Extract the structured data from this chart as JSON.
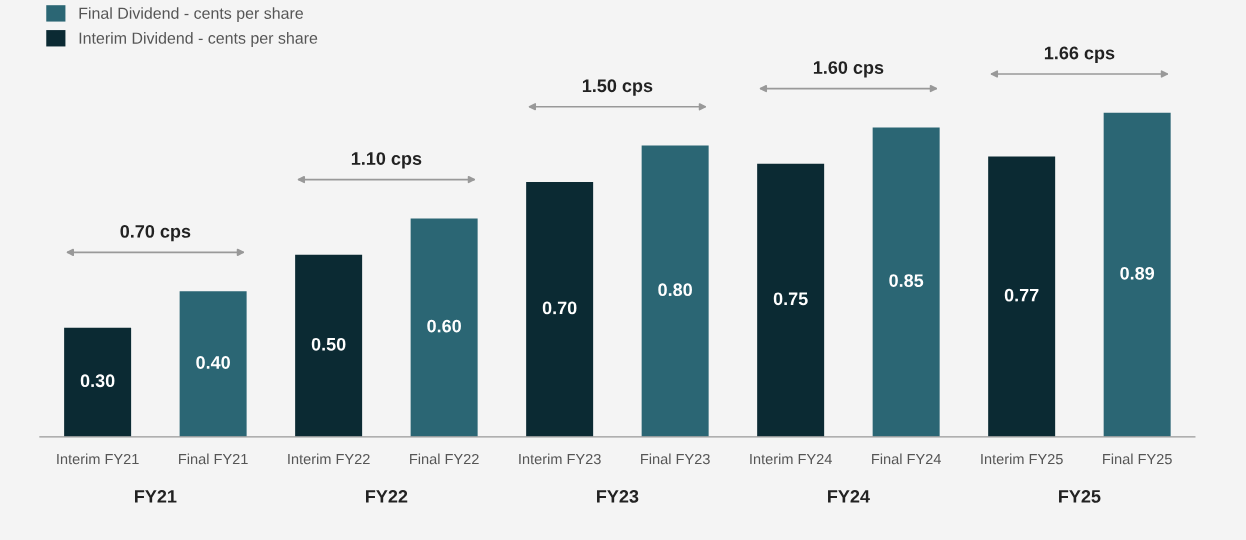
{
  "chart_data": {
    "type": "bar",
    "categories": [
      "Interim FY21",
      "Final FY21",
      "Interim FY22",
      "Final FY22",
      "Interim FY23",
      "Final FY23",
      "Interim FY24",
      "Final FY24",
      "Interim FY25",
      "Final FY25"
    ],
    "series": [
      {
        "name": "Final Dividend - cents per share",
        "color": "#2b6674",
        "values": [
          null,
          0.4,
          null,
          0.6,
          null,
          0.8,
          null,
          0.85,
          null,
          0.89
        ],
        "value_labels": [
          null,
          "0.40",
          null,
          "0.60",
          null,
          "0.80",
          null,
          "0.85",
          null,
          "0.89"
        ]
      },
      {
        "name": "Interim Dividend - cents per share",
        "color": "#0b2a33",
        "values": [
          0.3,
          null,
          0.5,
          null,
          0.7,
          null,
          0.75,
          null,
          0.77,
          null
        ],
        "value_labels": [
          "0.30",
          null,
          "0.50",
          null,
          "0.70",
          null,
          "0.75",
          null,
          "0.77",
          null
        ]
      }
    ],
    "legend": "top left",
    "grid": false,
    "annotations": [
      "FY21",
      "FY22",
      "FY23",
      "FY24",
      "FY25",
      "0.70 cps",
      "1.10 cps",
      "1.50 cps",
      "1.60 cps",
      "1.66 cps"
    ]
  }
}
